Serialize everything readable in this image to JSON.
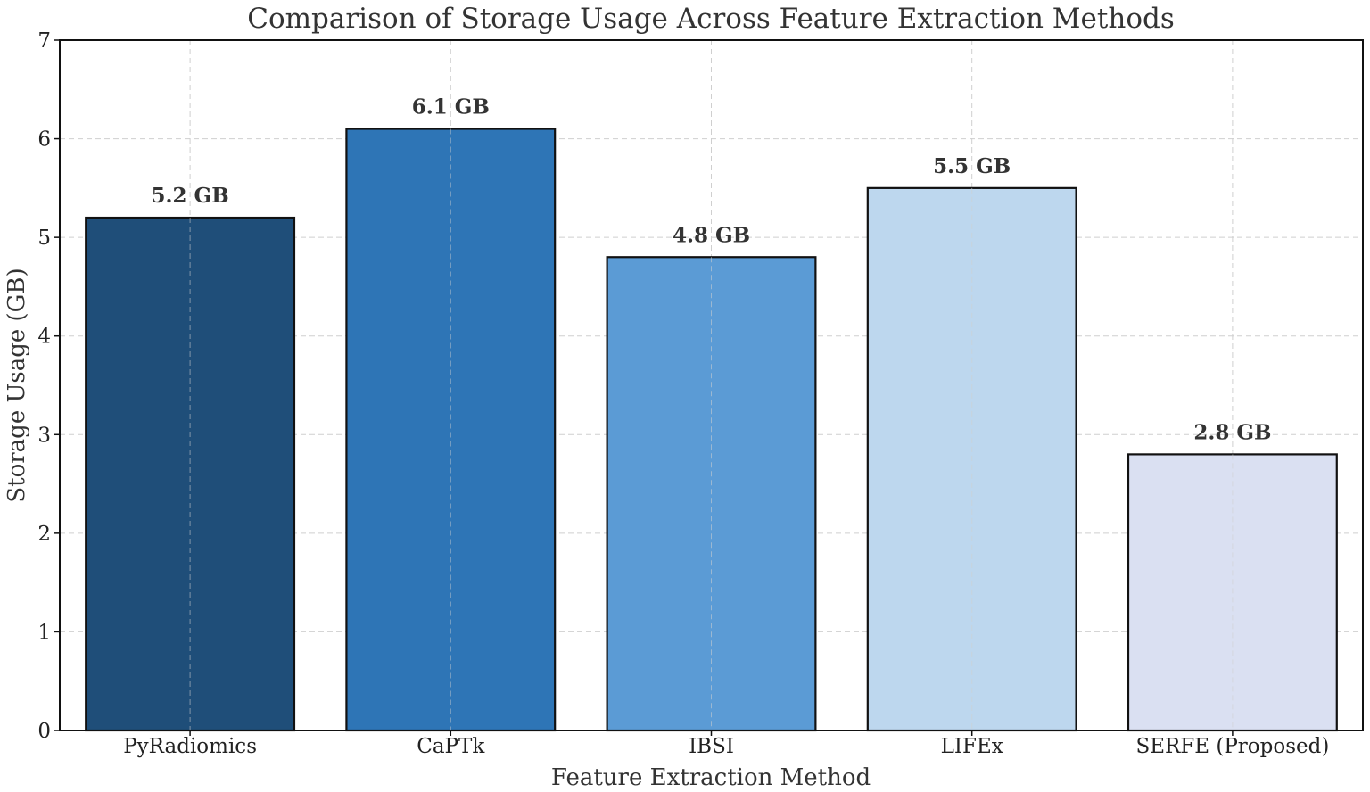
{
  "chart_data": {
    "type": "bar",
    "title": "Comparison of Storage Usage Across Feature Extraction Methods",
    "xlabel": "Feature Extraction Method",
    "ylabel": "Storage Usage (GB)",
    "categories": [
      "PyRadiomics",
      "CaPTk",
      "IBSI",
      "LIFEx",
      "SERFE (Proposed)"
    ],
    "values": [
      5.2,
      6.1,
      4.8,
      5.5,
      2.8
    ],
    "data_labels": [
      "5.2 GB",
      "6.1 GB",
      "4.8 GB",
      "5.5 GB",
      "2.8 GB"
    ],
    "colors": [
      "#1f4e79",
      "#2e75b6",
      "#5b9bd5",
      "#bdd7ee",
      "#dae0f2"
    ],
    "ylim": [
      0,
      7
    ],
    "yticks": [
      0,
      1,
      2,
      3,
      4,
      5,
      6,
      7
    ],
    "grid": true,
    "legend": "none"
  }
}
